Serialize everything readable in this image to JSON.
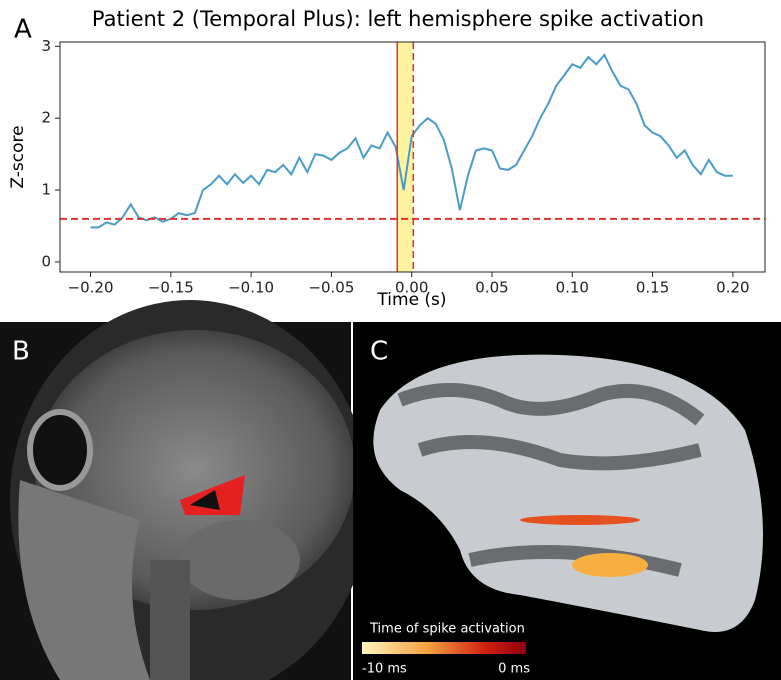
{
  "panel_labels": [
    "A",
    "B",
    "C"
  ],
  "colorbar": {
    "title": "Time of spike activation",
    "labels": [
      "-10 ms",
      "0 ms"
    ]
  },
  "chart_data": {
    "type": "line",
    "title": "Patient 2 (Temporal Plus): left hemisphere spike activation",
    "xlabel": "Time (s)",
    "ylabel": "Z-score",
    "x": [
      -0.2,
      -0.195,
      -0.19,
      -0.185,
      -0.18,
      -0.175,
      -0.17,
      -0.165,
      -0.16,
      -0.155,
      -0.15,
      -0.145,
      -0.14,
      -0.135,
      -0.13,
      -0.125,
      -0.12,
      -0.115,
      -0.11,
      -0.105,
      -0.1,
      -0.095,
      -0.09,
      -0.085,
      -0.08,
      -0.075,
      -0.07,
      -0.065,
      -0.06,
      -0.055,
      -0.05,
      -0.045,
      -0.04,
      -0.035,
      -0.03,
      -0.025,
      -0.02,
      -0.015,
      -0.01,
      -0.005,
      0,
      0.005,
      0.01,
      0.015,
      0.02,
      0.025,
      0.03,
      0.035,
      0.04,
      0.045,
      0.05,
      0.055,
      0.06,
      0.065,
      0.07,
      0.075,
      0.08,
      0.085,
      0.09,
      0.095,
      0.1,
      0.105,
      0.11,
      0.115,
      0.12,
      0.125,
      0.13,
      0.135,
      0.14,
      0.145,
      0.15,
      0.155,
      0.16,
      0.165,
      0.17,
      0.175,
      0.18,
      0.185,
      0.19,
      0.195,
      0.2
    ],
    "series": [
      {
        "color": "#4a9cc8",
        "values": [
          0.48,
          0.48,
          0.55,
          0.52,
          0.62,
          0.8,
          0.62,
          0.58,
          0.62,
          0.56,
          0.6,
          0.68,
          0.65,
          0.68,
          1.0,
          1.08,
          1.2,
          1.08,
          1.22,
          1.1,
          1.2,
          1.08,
          1.28,
          1.25,
          1.35,
          1.22,
          1.45,
          1.25,
          1.5,
          1.48,
          1.42,
          1.52,
          1.58,
          1.72,
          1.45,
          1.62,
          1.58,
          1.8,
          1.6,
          1.0,
          1.75,
          1.9,
          2.0,
          1.92,
          1.7,
          1.3,
          0.72,
          1.2,
          1.55,
          1.58,
          1.55,
          1.3,
          1.28,
          1.35,
          1.55,
          1.75,
          2.0,
          2.2,
          2.45,
          2.6,
          2.75,
          2.7,
          2.85,
          2.75,
          2.88,
          2.65,
          2.45,
          2.4,
          2.2,
          1.9,
          1.8,
          1.75,
          1.62,
          1.45,
          1.55,
          1.35,
          1.22,
          1.42,
          1.25,
          1.2,
          1.2
        ]
      }
    ],
    "threshold": 0.6,
    "threshold_color": "#e03030",
    "span": [
      -0.009,
      0.001
    ],
    "span_color": "#fff3a0",
    "xlim": [
      -0.219,
      0.22
    ],
    "ylim": [
      -0.14,
      3.06
    ],
    "xticks": [
      {
        "value": -0.2,
        "label": "−0.20"
      },
      {
        "value": -0.15,
        "label": "−0.15"
      },
      {
        "value": -0.1,
        "label": "−0.10"
      },
      {
        "value": -0.05,
        "label": "−0.05"
      },
      {
        "value": 0,
        "label": "0.00"
      },
      {
        "value": 0.05,
        "label": "0.05"
      },
      {
        "value": 0.1,
        "label": "0.10"
      },
      {
        "value": 0.15,
        "label": "0.15"
      },
      {
        "value": 0.2,
        "label": "0.20"
      }
    ],
    "yticks": [
      0,
      1,
      2,
      3
    ]
  }
}
